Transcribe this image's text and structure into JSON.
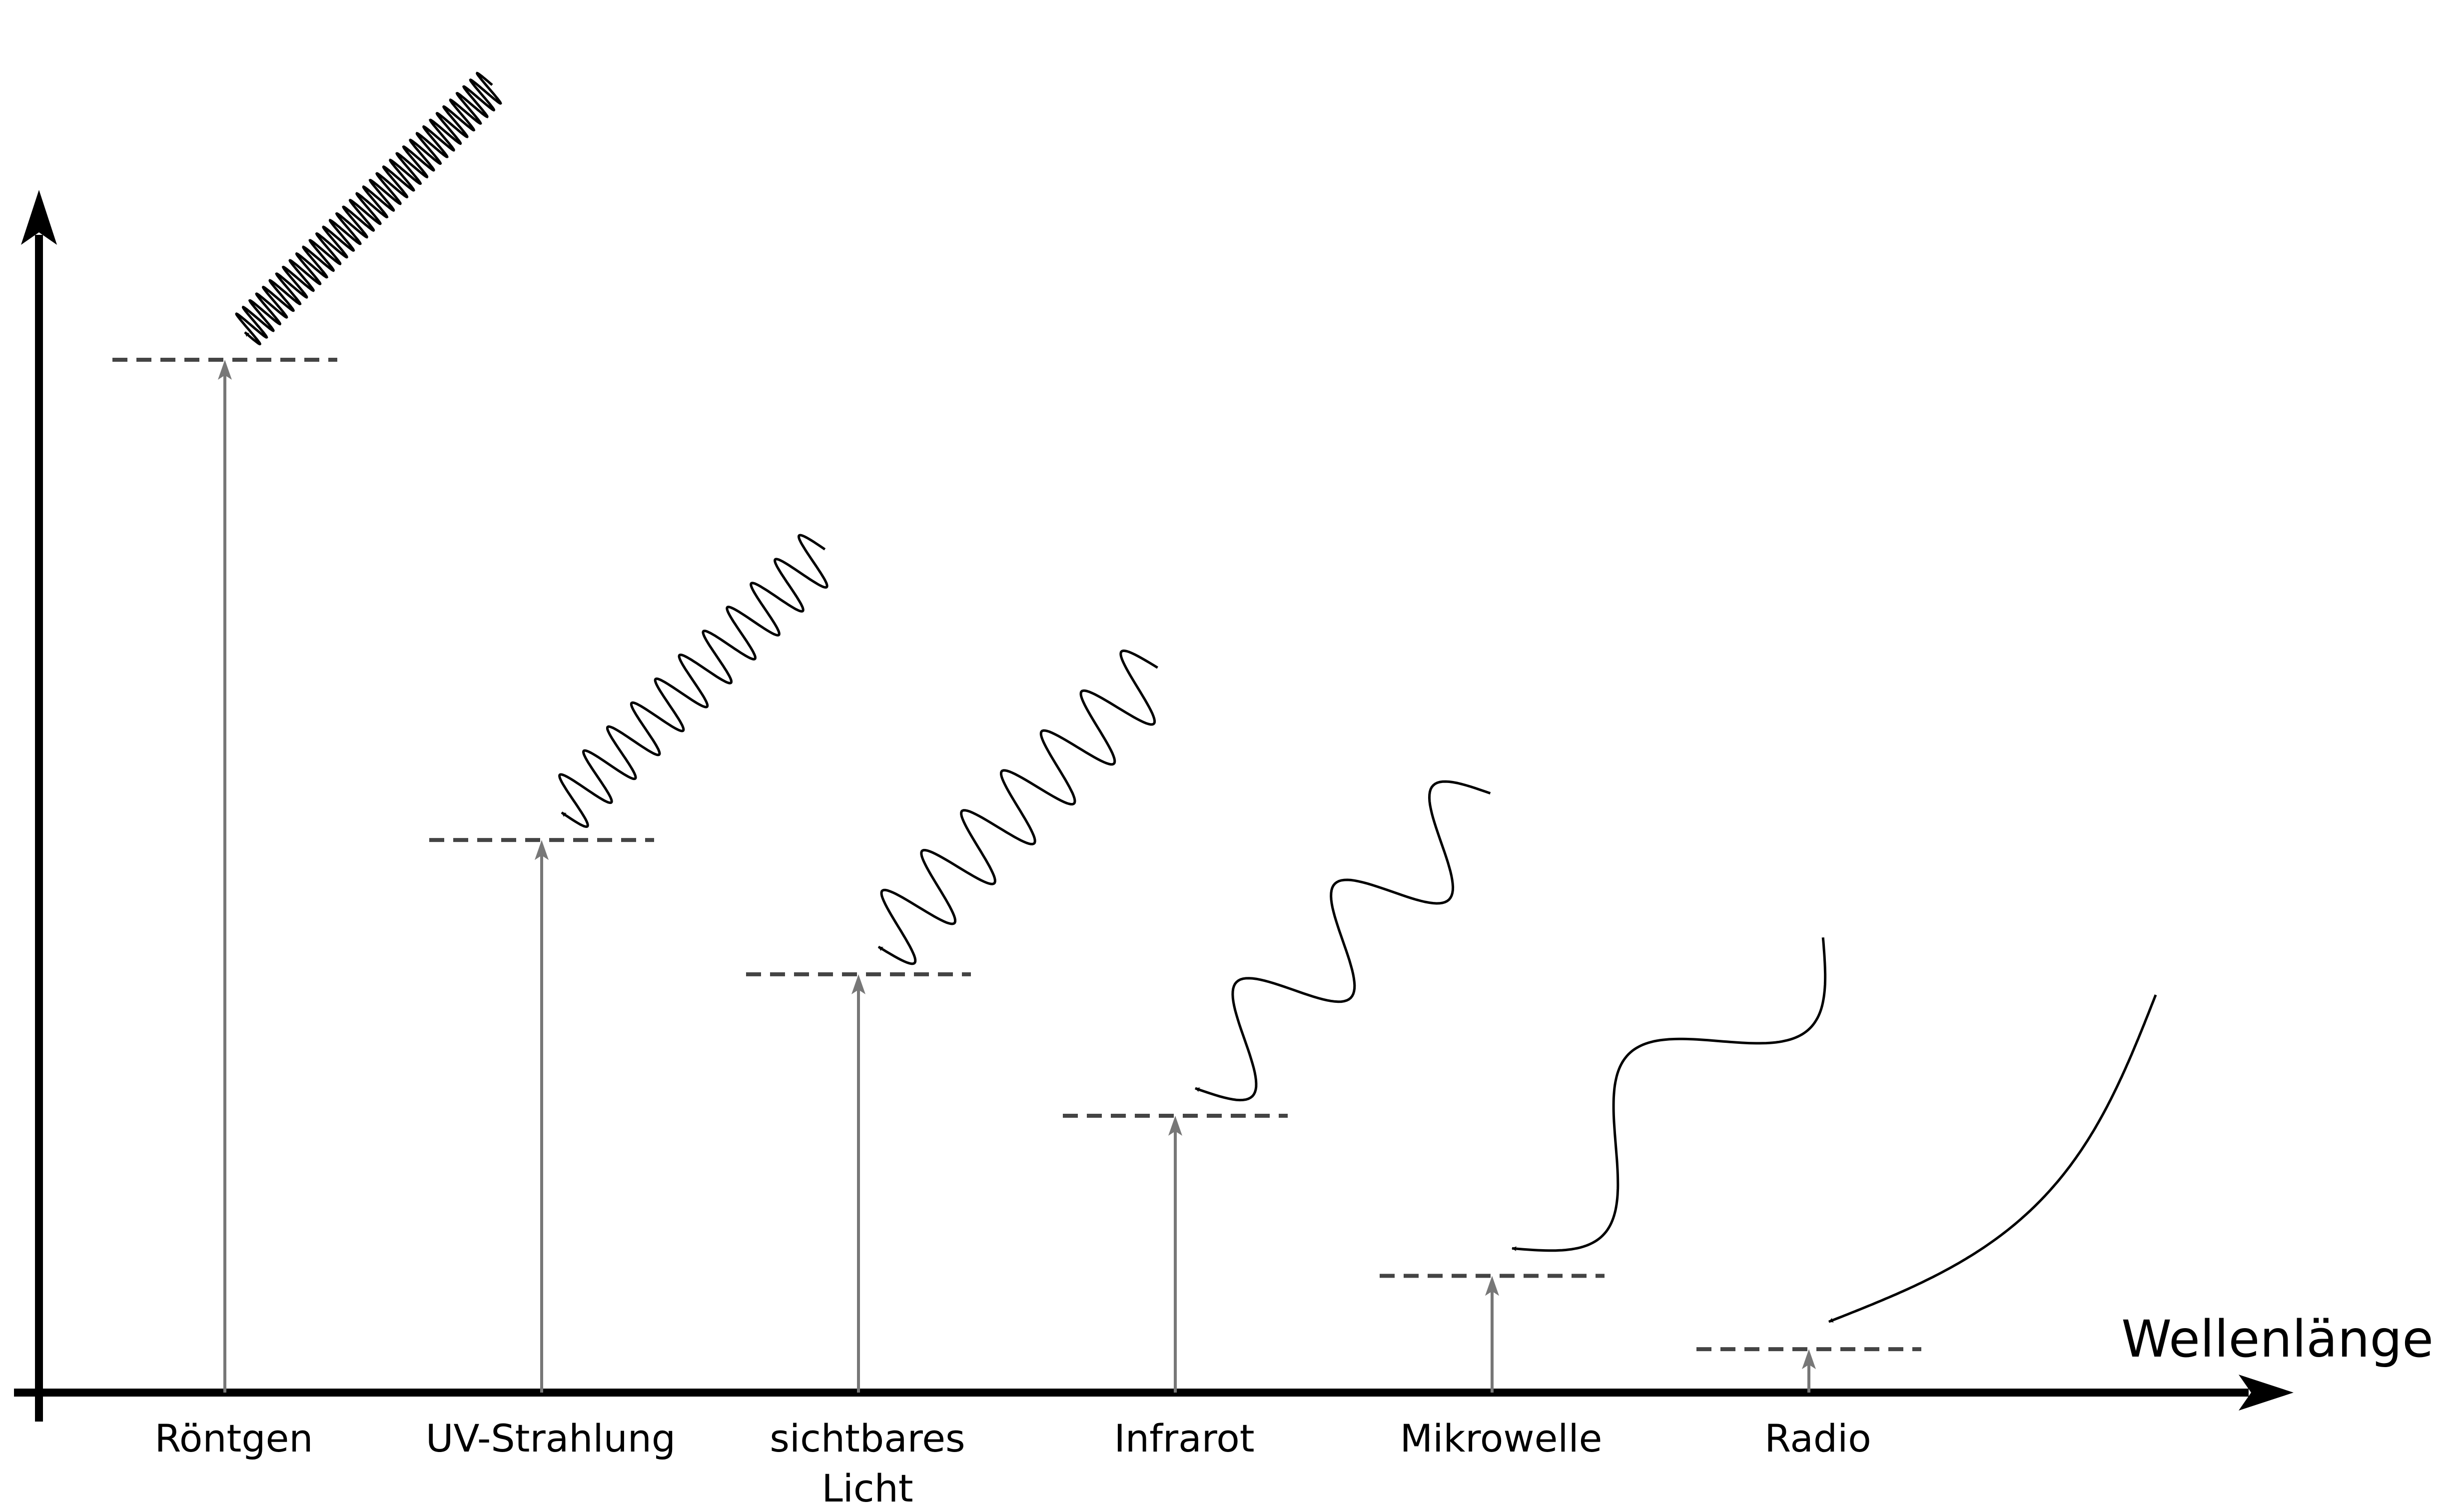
{
  "diagram": {
    "x_axis_label": "Wellenlänge",
    "categories": [
      {
        "lines": [
          "Röntgen"
        ],
        "energy": 1.0,
        "wave_cycles": 37
      },
      {
        "lines": [
          "UV-Strahlung"
        ],
        "energy": 0.535,
        "wave_cycles": 11
      },
      {
        "lines": [
          "sichtbares",
          "Licht"
        ],
        "energy": 0.405,
        "wave_cycles": 7
      },
      {
        "lines": [
          "Infrarot"
        ],
        "energy": 0.268,
        "wave_cycles": 3
      },
      {
        "lines": [
          "Mikrowelle"
        ],
        "energy": 0.113,
        "wave_cycles": 1.5
      },
      {
        "lines": [
          "Radio"
        ],
        "energy": 0.042,
        "wave_cycles": 0.5
      }
    ],
    "colors": {
      "axis": "#000000",
      "level_line": "#444444",
      "energy_arrow": "#777777",
      "wave": "#000000"
    }
  }
}
